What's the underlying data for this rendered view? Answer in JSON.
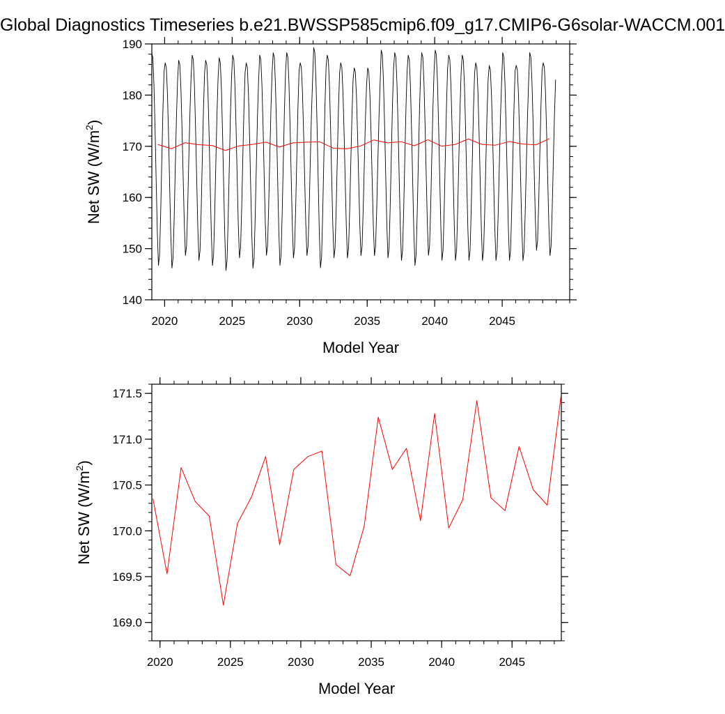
{
  "title": "Global Diagnostics Timeseries b.e21.BWSSP585cmip6.f09_g17.CMIP6-G6solar-WACCM.001",
  "colors": {
    "monthly": "#000000",
    "annual": "#ff0000",
    "axes": "#000000"
  },
  "chart_data": [
    {
      "type": "line",
      "xlabel": "Model Year",
      "ylabel": "Net SW (W/m2)",
      "xlim": [
        2019.05,
        2050.0
      ],
      "ylim": [
        140,
        190
      ],
      "x_major_ticks": [
        2020,
        2025,
        2030,
        2035,
        2040,
        2045
      ],
      "y_major_ticks": [
        140,
        150,
        160,
        170,
        180,
        190
      ],
      "x_tick_labels": [
        "2020",
        "2025",
        "2030",
        "2035",
        "2040",
        "2045"
      ],
      "y_tick_labels": [
        "140",
        "150",
        "160",
        "170",
        "180",
        "190"
      ],
      "series": [
        {
          "style": "monthly seasonal cycle",
          "start_year": 2019.04,
          "step_years": 0.0833333,
          "annual_max": [
            188.5,
            186.5,
            187.0,
            188.0,
            187.0,
            187.5,
            188.0,
            186.5,
            188.0,
            188.5,
            188.5,
            186.5,
            189.5,
            188.0,
            186.5,
            185.5,
            185.5,
            189.0,
            188.5,
            188.0,
            188.5,
            189.0,
            188.0,
            188.0,
            186.5,
            186.0,
            188.5,
            186.0,
            188.5,
            186.5
          ],
          "annual_min": [
            146.0,
            145.5,
            148.0,
            147.0,
            146.0,
            145.0,
            147.5,
            145.5,
            148.0,
            146.0,
            147.5,
            148.0,
            145.5,
            147.5,
            147.5,
            148.0,
            148.0,
            147.5,
            147.0,
            146.0,
            148.0,
            147.0,
            147.0,
            147.0,
            147.0,
            147.0,
            147.0,
            147.0,
            149.0,
            148.0
          ]
        },
        {
          "style": "annual mean",
          "x": [
            2019.5,
            2020.5,
            2021.5,
            2022.5,
            2023.5,
            2024.5,
            2025.5,
            2026.5,
            2027.5,
            2028.5,
            2029.5,
            2030.5,
            2031.5,
            2032.5,
            2033.5,
            2034.5,
            2035.5,
            2036.5,
            2037.5,
            2038.5,
            2039.5,
            2040.5,
            2041.5,
            2042.5,
            2043.5,
            2044.5,
            2045.5,
            2046.5,
            2047.5,
            2048.5
          ],
          "y": [
            170.35,
            169.53,
            170.69,
            170.32,
            170.16,
            169.19,
            170.08,
            170.37,
            170.81,
            169.85,
            170.67,
            170.81,
            170.87,
            169.63,
            169.51,
            170.05,
            171.24,
            170.67,
            170.9,
            170.11,
            171.28,
            170.03,
            170.34,
            171.42,
            170.36,
            170.22,
            170.92,
            170.45,
            170.28,
            171.5
          ]
        }
      ]
    },
    {
      "type": "line",
      "xlabel": "Model Year",
      "ylabel": "Net SW (W/m2)",
      "xlim": [
        2019.42,
        2048.5
      ],
      "ylim": [
        168.8,
        171.6
      ],
      "x_major_ticks": [
        2020,
        2025,
        2030,
        2035,
        2040,
        2045
      ],
      "y_major_ticks": [
        169.0,
        169.5,
        170.0,
        170.5,
        171.0,
        171.5
      ],
      "x_tick_labels": [
        "2020",
        "2025",
        "2030",
        "2035",
        "2040",
        "2045"
      ],
      "y_tick_labels": [
        "169.0",
        "169.5",
        "170.0",
        "170.5",
        "171.0",
        "171.5"
      ],
      "series": [
        {
          "style": "annual mean",
          "x": [
            2019.5,
            2020.5,
            2021.5,
            2022.5,
            2023.5,
            2024.5,
            2025.5,
            2026.5,
            2027.5,
            2028.5,
            2029.5,
            2030.5,
            2031.5,
            2032.5,
            2033.5,
            2034.5,
            2035.5,
            2036.5,
            2037.5,
            2038.5,
            2039.5,
            2040.5,
            2041.5,
            2042.5,
            2043.5,
            2044.5,
            2045.5,
            2046.5,
            2047.5,
            2048.5
          ],
          "y": [
            170.35,
            169.53,
            170.69,
            170.32,
            170.16,
            169.19,
            170.08,
            170.37,
            170.81,
            169.85,
            170.67,
            170.81,
            170.87,
            169.63,
            169.51,
            170.05,
            171.24,
            170.67,
            170.9,
            170.11,
            171.28,
            170.03,
            170.34,
            171.42,
            170.36,
            170.22,
            170.92,
            170.45,
            170.28,
            171.5
          ]
        }
      ]
    }
  ]
}
